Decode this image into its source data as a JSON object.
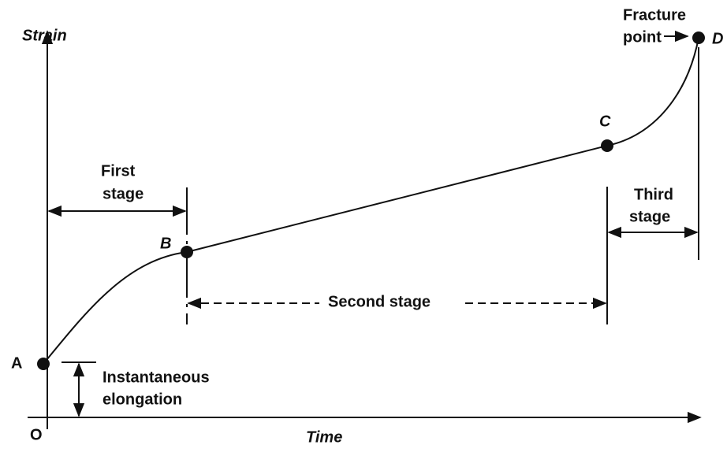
{
  "axes": {
    "y_label": "Strain",
    "x_label": "Time",
    "origin": "O"
  },
  "points": [
    {
      "label": "A"
    },
    {
      "label": "B"
    },
    {
      "label": "C"
    },
    {
      "label": "D"
    }
  ],
  "annotations": {
    "fracture_point": [
      "Fracture",
      "point"
    ],
    "first_stage": [
      "First",
      "stage"
    ],
    "second_stage": "Second stage",
    "third_stage": [
      "Third",
      "stage"
    ],
    "instantaneous_elongation": [
      "Instantaneous",
      "elongation"
    ]
  }
}
